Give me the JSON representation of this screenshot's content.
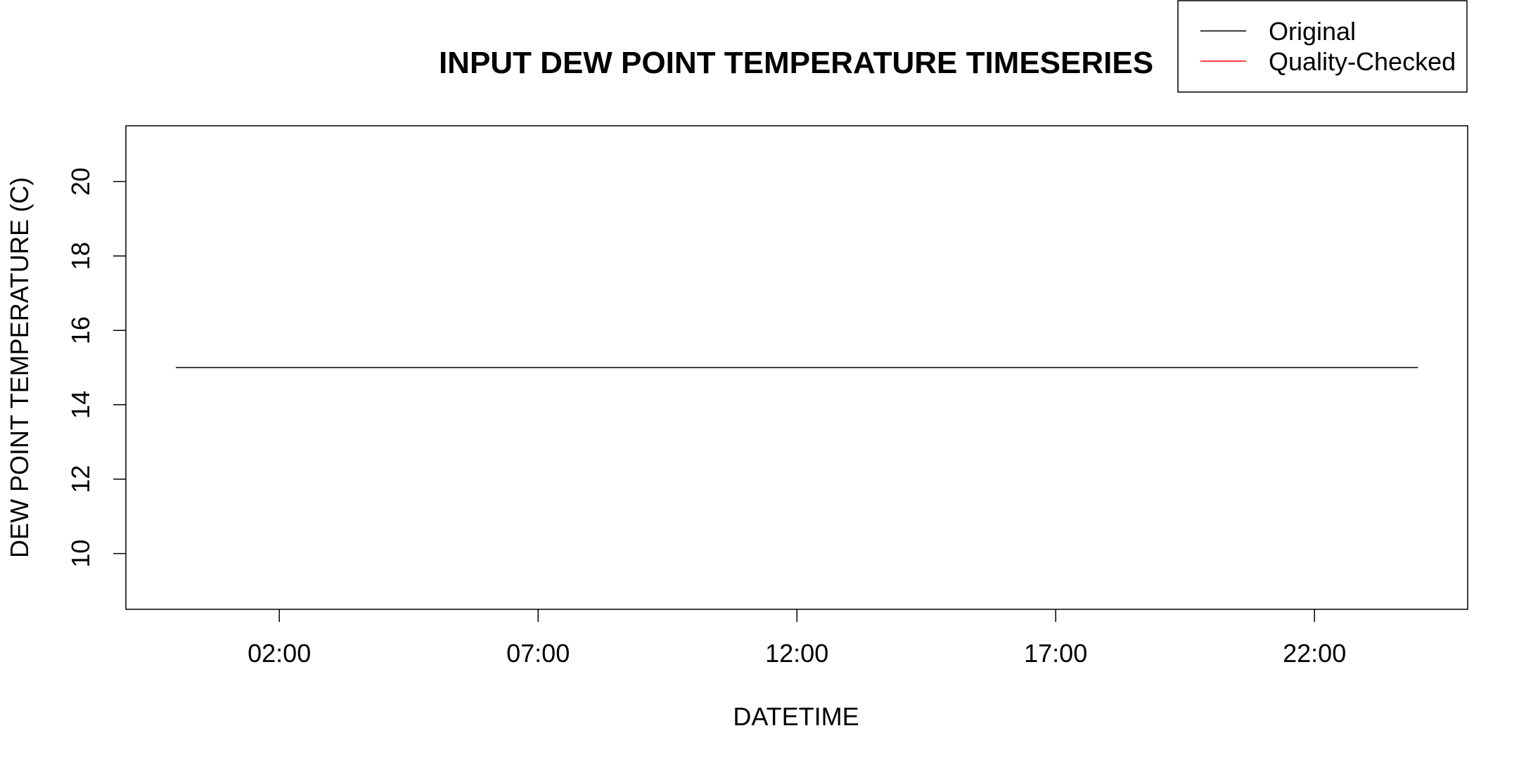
{
  "chart_data": {
    "type": "line",
    "title": "INPUT DEW POINT TEMPERATURE TIMESERIES",
    "xlabel": "DATETIME",
    "ylabel": "DEW POINT TEMPERATURE (C)",
    "x_ticks": [
      "02:00",
      "07:00",
      "12:00",
      "17:00",
      "22:00"
    ],
    "y_ticks": [
      10,
      12,
      14,
      16,
      18,
      20
    ],
    "ylim": [
      8.5,
      21.5
    ],
    "xlim": [
      "23:00",
      "01:00"
    ],
    "grid": false,
    "legend_position": "top-right",
    "series": [
      {
        "name": "Original",
        "color": "#000000",
        "points": [
          {
            "x": "00:00",
            "y": 15
          },
          {
            "x": "24:00",
            "y": 15
          }
        ]
      },
      {
        "name": "Quality-Checked",
        "color": "#ff0000",
        "points": []
      }
    ]
  }
}
